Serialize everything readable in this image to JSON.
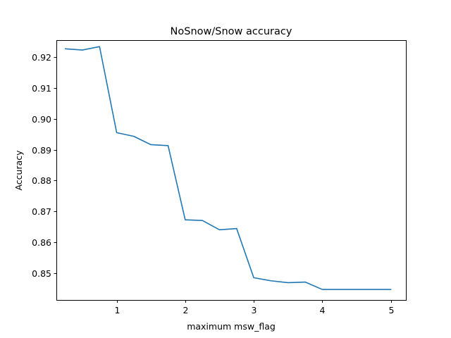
{
  "chart_data": {
    "type": "line",
    "title": "NoSnow/Snow accuracy",
    "xlabel": "maximum msw_flag",
    "ylabel": "Accuracy",
    "xlim": [
      0.12,
      5.22
    ],
    "ylim": [
      0.8414,
      0.9254
    ],
    "xticks": [
      1,
      2,
      3,
      4,
      5
    ],
    "xtick_labels": [
      "1",
      "2",
      "3",
      "4",
      "5"
    ],
    "yticks": [
      0.85,
      0.86,
      0.87,
      0.88,
      0.89,
      0.9,
      0.91,
      0.92
    ],
    "ytick_labels": [
      "0.85",
      "0.86",
      "0.87",
      "0.88",
      "0.89",
      "0.90",
      "0.91",
      "0.92"
    ],
    "grid": false,
    "series": [
      {
        "color": "#1f77b4",
        "x": [
          0.25,
          0.5,
          0.75,
          1.0,
          1.25,
          1.5,
          1.75,
          2.0,
          2.25,
          2.5,
          2.75,
          3.0,
          3.25,
          3.5,
          3.75,
          4.0,
          4.25,
          4.5,
          4.75,
          5.0
        ],
        "y": [
          0.9226,
          0.9222,
          0.9233,
          0.8955,
          0.8943,
          0.8916,
          0.8913,
          0.8673,
          0.8671,
          0.8641,
          0.8645,
          0.8486,
          0.8476,
          0.847,
          0.8472,
          0.8448,
          0.8448,
          0.8448,
          0.8448,
          0.8448
        ]
      }
    ]
  }
}
